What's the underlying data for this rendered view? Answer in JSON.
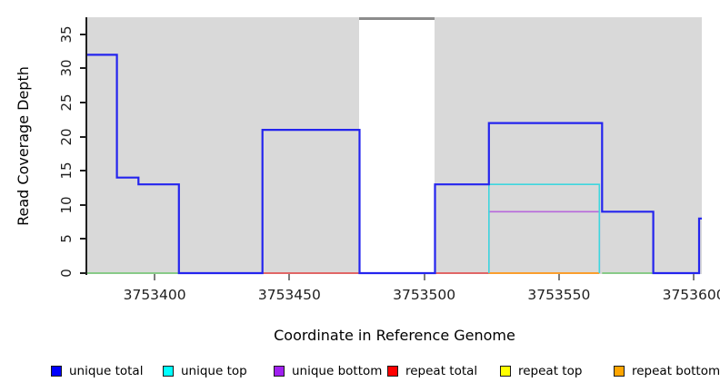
{
  "chart_data": {
    "type": "line",
    "style": "step-coverage-plot",
    "title": "",
    "xlabel": "Coordinate in Reference Genome",
    "ylabel": "Read Coverage Depth",
    "xlim": [
      3753375,
      3753603
    ],
    "ylim": [
      0,
      37.5
    ],
    "x_ticks": [
      3753400,
      3753450,
      3753500,
      3753550,
      3753600
    ],
    "y_ticks": [
      0,
      5,
      10,
      15,
      20,
      25,
      30,
      35
    ],
    "grid": false,
    "page_background": "#ffffff",
    "plot_background": "#d9d9d9",
    "gap_region": {
      "x1": 3753476,
      "x2": 3753504,
      "fill": "#ffffff",
      "top_edge_color": "#8c8c8c"
    },
    "series": [
      {
        "name": "repeat total",
        "color": "#e25555",
        "width": 1.8,
        "lines": [
          [
            [
              3753440,
              0
            ],
            [
              3753524,
              0
            ]
          ]
        ]
      },
      {
        "name": "repeat bottom",
        "color": "#ff9514",
        "width": 1.8,
        "lines": [
          [
            [
              3753524,
              0
            ],
            [
              3753565,
              0
            ]
          ]
        ]
      },
      {
        "name": "green (unlabeled baseline)",
        "color": "#7cc87c",
        "width": 1.8,
        "lines": [
          [
            [
              3753375,
              0
            ],
            [
              3753409,
              0
            ]
          ],
          [
            [
              3753566,
              0
            ],
            [
              3753585,
              0
            ]
          ]
        ]
      },
      {
        "name": "unique bottom",
        "color": "#b768db",
        "width": 1.6,
        "lines": [
          [
            [
              3753524,
              0
            ],
            [
              3753524,
              9
            ],
            [
              3753565,
              9
            ],
            [
              3753565,
              0
            ]
          ]
        ]
      },
      {
        "name": "unique top",
        "color": "#3fd6de",
        "width": 1.6,
        "lines": [
          [
            [
              3753524,
              0
            ],
            [
              3753524,
              13
            ],
            [
              3753565,
              13
            ],
            [
              3753565,
              0
            ]
          ]
        ]
      },
      {
        "name": "unique total",
        "color": "#2424ee",
        "width": 2.2,
        "lines": [
          [
            [
              3753375,
              32
            ],
            [
              3753386,
              32
            ],
            [
              3753386,
              14
            ],
            [
              3753394,
              14
            ],
            [
              3753394,
              13
            ],
            [
              3753409,
              13
            ],
            [
              3753409,
              0
            ],
            [
              3753440,
              0
            ],
            [
              3753440,
              21
            ],
            [
              3753476,
              21
            ],
            [
              3753476,
              0
            ],
            [
              3753504,
              0
            ],
            [
              3753504,
              13
            ],
            [
              3753524,
              13
            ],
            [
              3753524,
              22
            ],
            [
              3753566,
              22
            ],
            [
              3753566,
              9
            ],
            [
              3753585,
              9
            ],
            [
              3753585,
              0
            ],
            [
              3753602,
              0
            ],
            [
              3753602,
              8
            ],
            [
              3753603,
              8
            ]
          ]
        ]
      }
    ],
    "legend": {
      "position": "bottom",
      "items": [
        {
          "label": "unique total",
          "color": "#0000ff"
        },
        {
          "label": "unique top",
          "color": "#00ffff"
        },
        {
          "label": "unique bottom",
          "color": "#a020f0"
        },
        {
          "label": "repeat total",
          "color": "#ff0000"
        },
        {
          "label": "repeat top",
          "color": "#ffff00"
        },
        {
          "label": "repeat bottom",
          "color": "#ffa500"
        }
      ]
    }
  }
}
